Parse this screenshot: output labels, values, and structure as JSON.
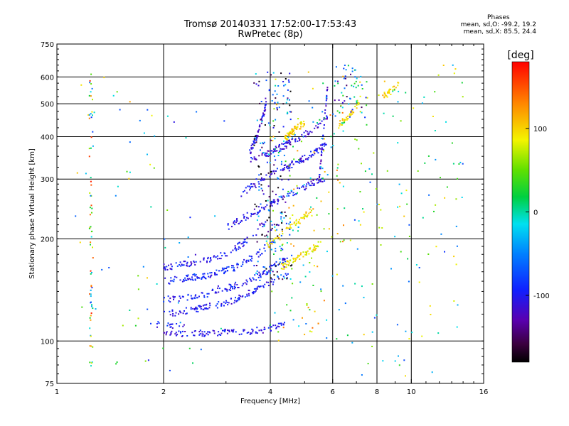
{
  "header": {
    "title": "Tromsø 20140331 17:52:00-17:53:43",
    "subtitle": "RwPretec (8p)"
  },
  "phase_stats": {
    "heading": "Phases",
    "line1": "mean, sd,O: -99.2, 19.2",
    "line2": "mean, sd,X:  85.5, 24.4"
  },
  "colorbar": {
    "unit_label": "[deg]",
    "ticks": [
      "100",
      "0",
      "-100"
    ],
    "tick_values": [
      100,
      0,
      -100
    ],
    "range": [
      -180,
      180
    ]
  },
  "chart_data": {
    "type": "scatter",
    "title": "Tromsø 20140331 17:52:00-17:53:43",
    "subtitle": "RwPretec (8p)",
    "xlabel": "Frequency [MHz]",
    "ylabel": "Stationary phase Virtual Height [km]",
    "xscale": "log",
    "yscale": "log",
    "xlim": [
      1,
      16
    ],
    "ylim": [
      75,
      750
    ],
    "xticks": [
      1,
      2,
      4,
      6,
      8,
      10,
      16
    ],
    "xtick_labels": [
      "1",
      "2",
      "4",
      "6",
      "8",
      "10",
      "16"
    ],
    "xgrid": [
      2,
      4,
      6,
      8,
      10
    ],
    "yticks": [
      75,
      100,
      200,
      300,
      400,
      500,
      600,
      750
    ],
    "ytick_labels": [
      "75",
      "100",
      "200",
      "300",
      "400",
      "500",
      "600",
      "750"
    ],
    "ygrid": [
      100,
      200,
      300,
      400,
      500,
      600
    ],
    "grid": true,
    "colorscale": "phase in degrees, -180 (black/purple) to 180 (red)",
    "traces": [
      {
        "x": [
          1.8,
          2.3
        ],
        "y": [
          113,
          110
        ],
        "phase": -100,
        "n": 18
      },
      {
        "x": [
          2.0,
          3.3,
          4.1,
          4.4
        ],
        "y": [
          105,
          106,
          109,
          113
        ],
        "phase": -105,
        "n": 110
      },
      {
        "x": [
          2.0,
          2.5,
          3.2,
          3.8,
          4.5
        ],
        "y": [
          120,
          124,
          132,
          145,
          157
        ],
        "phase": -100,
        "n": 120
      },
      {
        "x": [
          2.0,
          2.6,
          3.3,
          3.9,
          4.4
        ],
        "y": [
          132,
          137,
          147,
          160,
          175
        ],
        "phase": -100,
        "n": 120
      },
      {
        "x": [
          2.0,
          2.6,
          3.2,
          3.7,
          4.1
        ],
        "y": [
          150,
          155,
          165,
          180,
          200
        ],
        "phase": -95,
        "n": 120
      },
      {
        "x": [
          2.0,
          2.5,
          3.0,
          3.5,
          3.9
        ],
        "y": [
          165,
          170,
          180,
          200,
          225
        ],
        "phase": -100,
        "n": 100
      },
      {
        "x": [
          3.0,
          3.6,
          4.3,
          5.0,
          5.8
        ],
        "y": [
          215,
          240,
          262,
          285,
          305
        ],
        "phase": -105,
        "n": 110
      },
      {
        "x": [
          3.3,
          3.8,
          4.3,
          5.0,
          5.8
        ],
        "y": [
          270,
          300,
          320,
          345,
          380
        ],
        "phase": -105,
        "n": 110
      },
      {
        "x": [
          3.5,
          4.0,
          4.6,
          5.3,
          5.8
        ],
        "y": [
          340,
          360,
          385,
          420,
          460
        ],
        "phase": -110,
        "n": 100
      },
      {
        "x": [
          3.5,
          3.7,
          3.9
        ],
        "y": [
          360,
          410,
          500
        ],
        "phase": -110,
        "n": 60
      },
      {
        "x": [
          5.5,
          5.8
        ],
        "y": [
          300,
          560
        ],
        "phase": -110,
        "n": 40
      },
      {
        "x": [
          4.3,
          4.6,
          5.2,
          5.6
        ],
        "y": [
          165,
          172,
          185,
          195
        ],
        "phase": 90,
        "n": 70
      },
      {
        "x": [
          3.9,
          4.3,
          4.8,
          5.3
        ],
        "y": [
          190,
          205,
          225,
          245
        ],
        "phase": 95,
        "n": 60
      },
      {
        "x": [
          4.4,
          4.7,
          5.0
        ],
        "y": [
          395,
          420,
          440
        ],
        "phase": 100,
        "n": 60
      },
      {
        "x": [
          6.2,
          6.8,
          7.2
        ],
        "y": [
          430,
          470,
          520
        ],
        "phase": 100,
        "n": 40
      },
      {
        "x": [
          8.2,
          8.8,
          9.2
        ],
        "y": [
          520,
          545,
          580
        ],
        "phase": 105,
        "n": 30
      }
    ],
    "scatter_regions": [
      {
        "x": [
          3.6,
          4.6
        ],
        "y": [
          150,
          620
        ],
        "phase": -105,
        "n": 220
      },
      {
        "x": [
          6.0,
          7.5
        ],
        "y": [
          430,
          650
        ],
        "phase": -60,
        "n": 60
      },
      {
        "x": [
          4.0,
          6.5
        ],
        "y": [
          100,
          650
        ],
        "phase": 40,
        "n": 160
      },
      {
        "x": [
          1.1,
          1.9
        ],
        "y": [
          78,
          650
        ],
        "phase": 20,
        "n": 40
      },
      {
        "x": [
          6.5,
          14.0
        ],
        "y": [
          78,
          650
        ],
        "phase": 10,
        "n": 130
      },
      {
        "x": [
          1.7,
          3.0
        ],
        "y": [
          80,
          500
        ],
        "phase": -40,
        "n": 30
      }
    ],
    "vertical_streak": {
      "x": 1.25,
      "y": [
        78,
        650
      ],
      "n": 70
    }
  },
  "colors": {
    "background": "#ffffff",
    "axes": "#000000"
  }
}
